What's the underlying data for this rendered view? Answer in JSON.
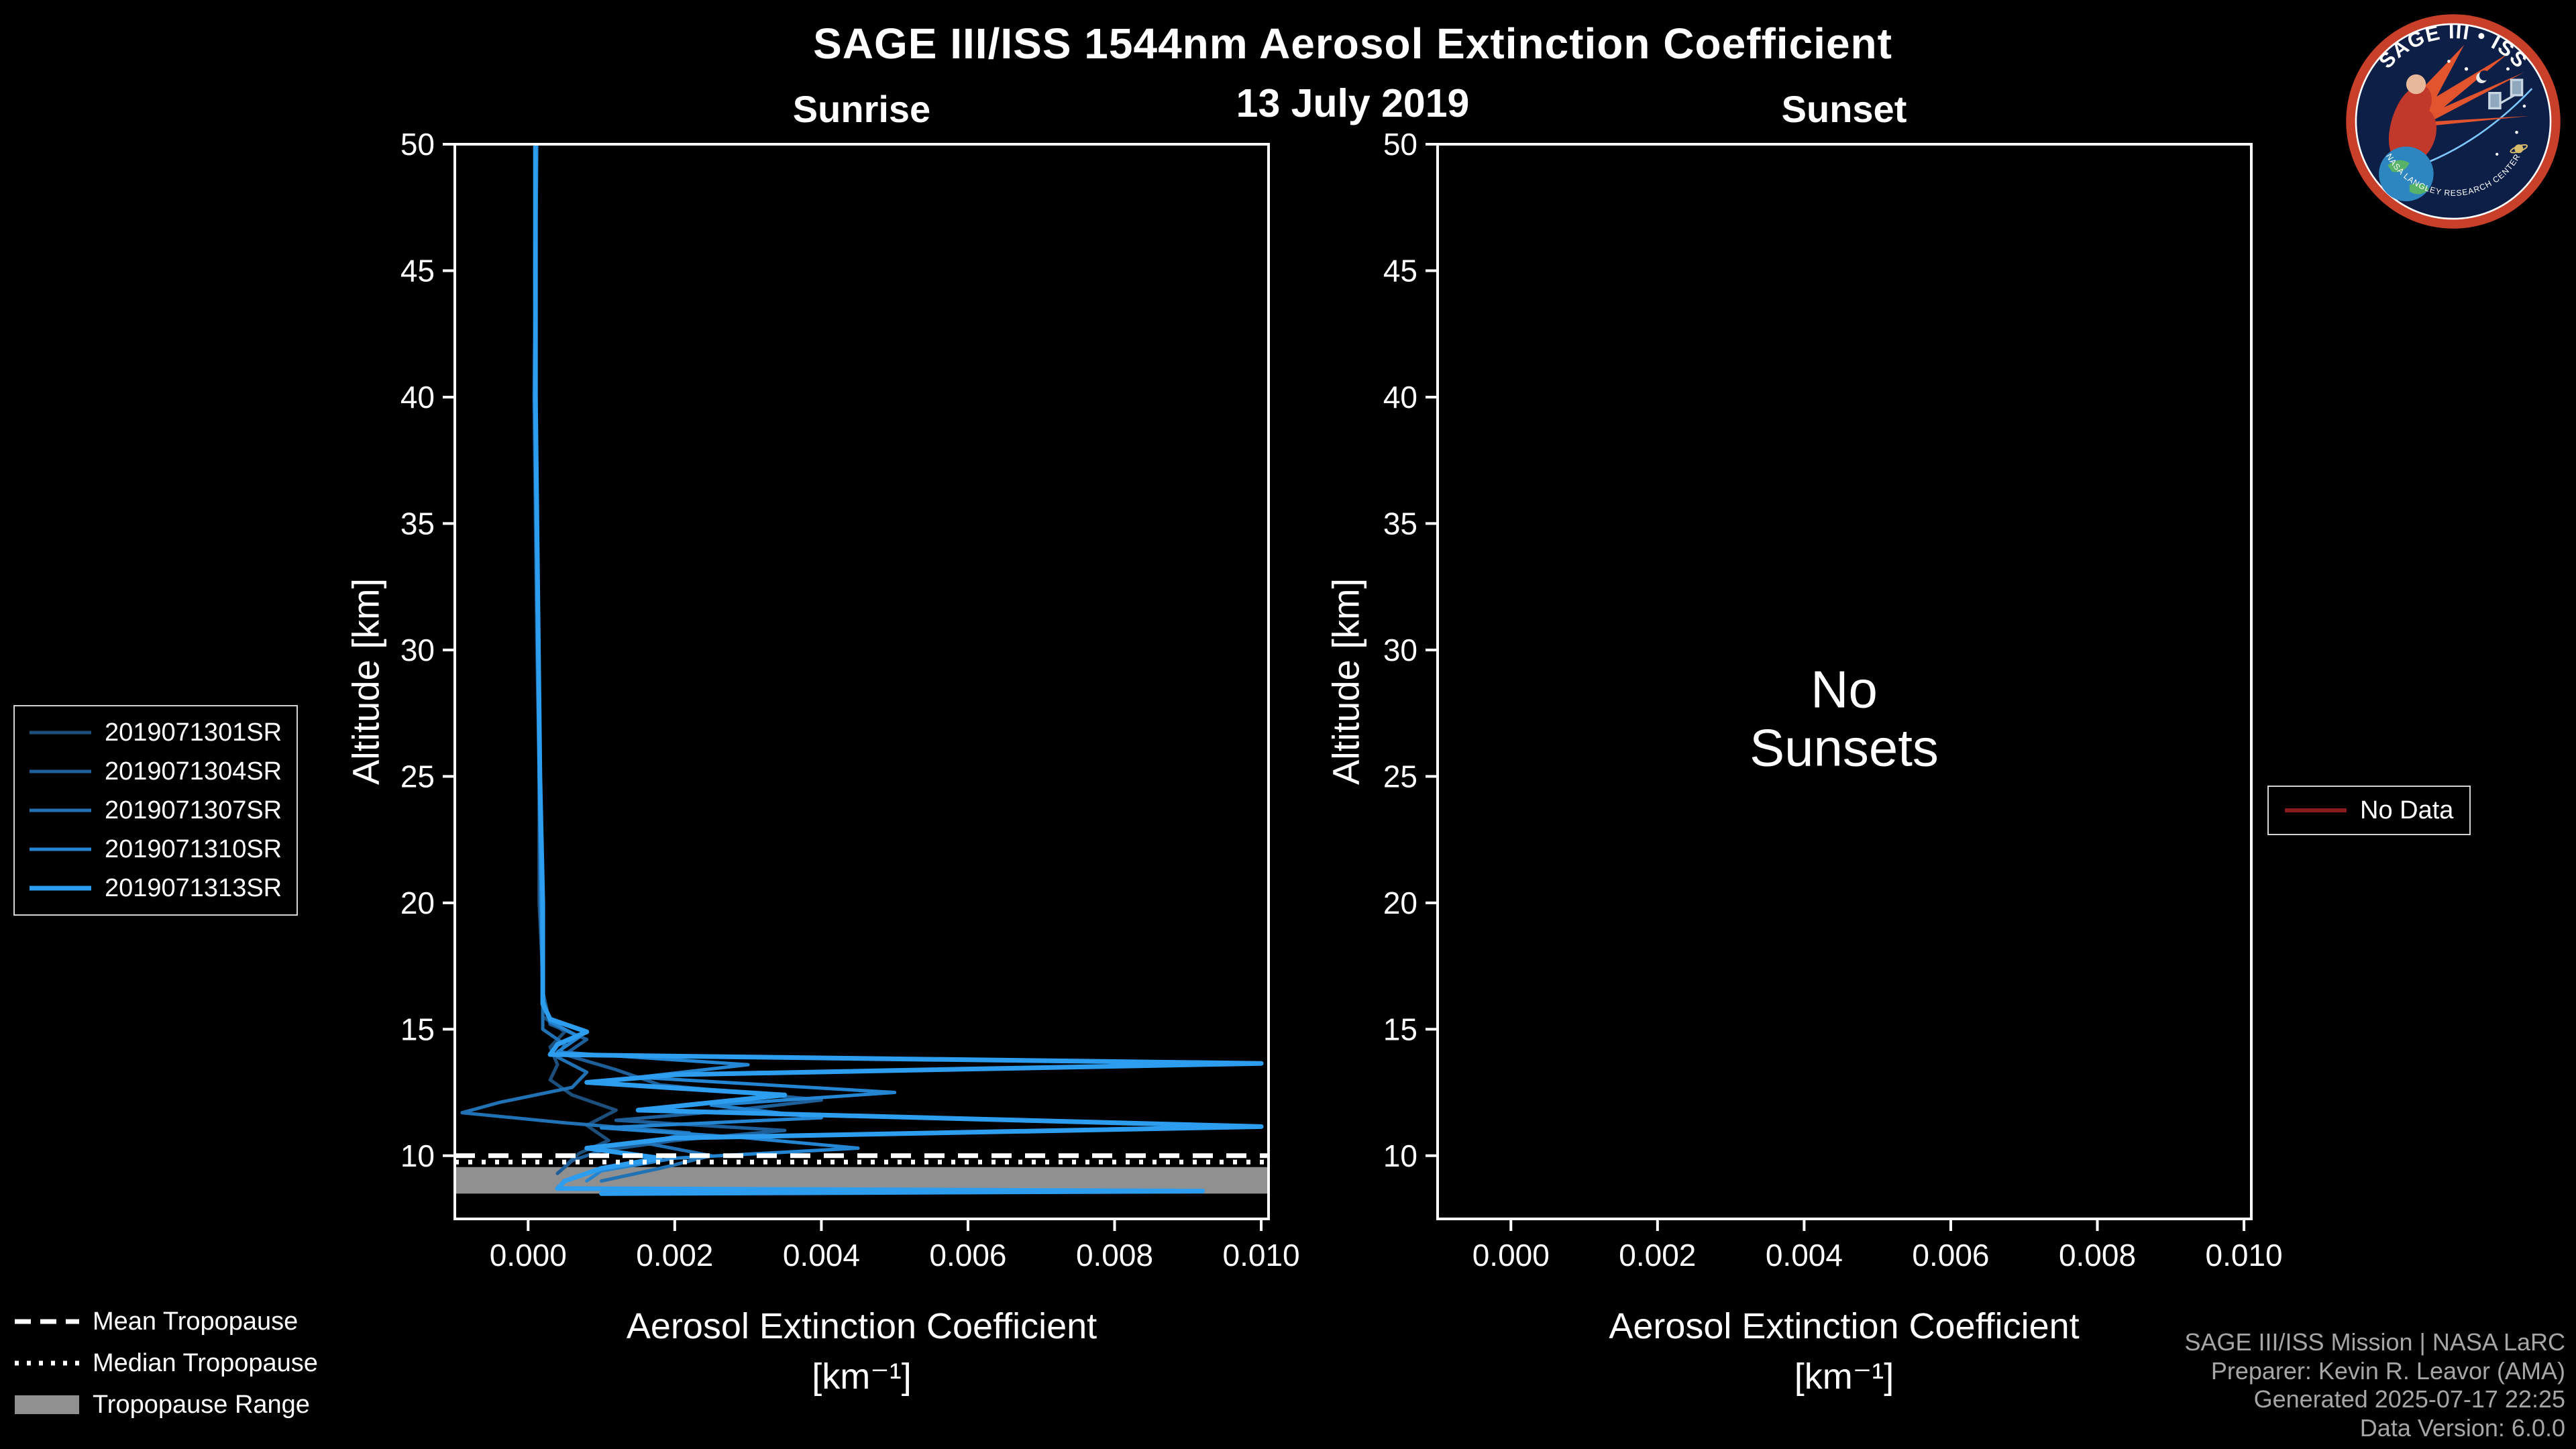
{
  "colors": {
    "background": "#000000",
    "foreground": "#ffffff",
    "tropopause_range": "#909090",
    "no_data": "#8b1a1a",
    "credits_text": "#a6a6a6"
  },
  "header": {
    "title": "SAGE III/ISS 1544nm Aerosol Extinction Coefficient",
    "date": "13 July 2019"
  },
  "logo": {
    "title": "SAGE III • ISS",
    "ring_text": "NASA LANGLEY RESEARCH CENTER"
  },
  "axes": {
    "x_label": "Aerosol Extinction Coefficient",
    "x_label_units": "[km⁻¹]",
    "y_label": "Altitude [km]"
  },
  "legend": {
    "tropopause": [
      {
        "label": "Mean Tropopause",
        "style": "dashed"
      },
      {
        "label": "Median Tropopause",
        "style": "dotted"
      },
      {
        "label": "Tropopause Range",
        "style": "patch"
      }
    ],
    "no_data": {
      "label": "No Data",
      "color": "#8b1a1a"
    }
  },
  "credits": {
    "lines": [
      "SAGE III/ISS Mission | NASA LaRC",
      "Preparer: Kevin R. Leavor (AMA)",
      "Generated 2025-07-17 22:25",
      "Data Version: 6.0.0"
    ]
  },
  "chart_data": {
    "type": "line",
    "title": "SAGE III/ISS 1544nm Aerosol Extinction Coefficient",
    "subtitle": "13 July 2019",
    "xlabel": "Aerosol Extinction Coefficient [km⁻¹]",
    "ylabel": "Altitude [km]",
    "xlim": [
      -0.001,
      0.0101
    ],
    "ylim": [
      7.5,
      50
    ],
    "x_ticks": [
      0.0,
      0.002,
      0.004,
      0.006,
      0.008,
      0.01
    ],
    "x_tick_labels": [
      "0.000",
      "0.002",
      "0.004",
      "0.006",
      "0.008",
      "0.010"
    ],
    "y_ticks": [
      10,
      15,
      20,
      25,
      30,
      35,
      40,
      45,
      50
    ],
    "grid": false,
    "legend_position": "left",
    "points_format": "[extinction_km^-1, altitude_km]",
    "panels": [
      {
        "name": "Sunrise",
        "tropopause": {
          "mean_km": 10.0,
          "median_km": 9.75,
          "range_km": [
            8.5,
            9.55
          ]
        },
        "series": [
          {
            "name": "2019071301SR",
            "color": "#1c4f7c",
            "width": 5,
            "points": [
              [
                0.0001,
                50
              ],
              [
                0.0001,
                45
              ],
              [
                8e-05,
                40
              ],
              [
                0.0001,
                35
              ],
              [
                0.00012,
                30
              ],
              [
                0.00015,
                25
              ],
              [
                0.00015,
                20
              ],
              [
                0.0002,
                17
              ],
              [
                0.0002,
                15.5
              ],
              [
                0.0005,
                14.9
              ],
              [
                0.0003,
                14.3
              ],
              [
                0.0004,
                13.6
              ],
              [
                0.0003,
                13.0
              ],
              [
                0.0006,
                12.4
              ],
              [
                0.0012,
                11.8
              ],
              [
                0.0008,
                11.2
              ],
              [
                0.0011,
                10.6
              ],
              [
                0.0007,
                10.1
              ],
              [
                0.0005,
                9.6
              ]
            ]
          },
          {
            "name": "2019071304SR",
            "color": "#1e5f99",
            "width": 5,
            "points": [
              [
                0.00012,
                50
              ],
              [
                0.0001,
                45
              ],
              [
                0.0001,
                40
              ],
              [
                0.00012,
                35
              ],
              [
                0.00014,
                30
              ],
              [
                0.00016,
                25
              ],
              [
                0.00018,
                20
              ],
              [
                0.0002,
                16.5
              ],
              [
                0.0003,
                15.2
              ],
              [
                0.0008,
                14.6
              ],
              [
                0.0005,
                14.0
              ],
              [
                0.0012,
                13.4
              ],
              [
                0.0018,
                12.8
              ],
              [
                0.004,
                12.2
              ],
              [
                0.0028,
                11.8
              ],
              [
                0.0012,
                11.4
              ],
              [
                0.0035,
                11.0
              ],
              [
                0.002,
                10.6
              ],
              [
                0.001,
                10.2
              ],
              [
                0.0006,
                9.8
              ],
              [
                0.0004,
                9.3
              ]
            ]
          },
          {
            "name": "2019071307SR",
            "color": "#2172b5",
            "width": 5,
            "points": [
              [
                0.0001,
                50
              ],
              [
                9e-05,
                45
              ],
              [
                0.0001,
                40
              ],
              [
                0.00011,
                35
              ],
              [
                0.00013,
                30
              ],
              [
                0.00015,
                25
              ],
              [
                0.00017,
                20
              ],
              [
                0.0002,
                16.0
              ],
              [
                0.0002,
                15.0
              ],
              [
                0.0005,
                14.4
              ],
              [
                0.0004,
                13.9
              ],
              [
                0.0008,
                13.3
              ],
              [
                0.0006,
                12.7
              ],
              [
                -0.0004,
                12.1
              ],
              [
                -0.0009,
                11.7
              ],
              [
                0.0005,
                11.3
              ],
              [
                0.0022,
                10.9
              ],
              [
                0.0016,
                10.5
              ],
              [
                0.0025,
                10.0
              ],
              [
                0.0018,
                9.5
              ],
              [
                0.001,
                9.0
              ]
            ]
          },
          {
            "name": "2019071310SR",
            "color": "#2486d3",
            "width": 5,
            "points": [
              [
                0.0001,
                50
              ],
              [
                0.0001,
                45
              ],
              [
                9e-05,
                40
              ],
              [
                0.00011,
                35
              ],
              [
                0.00013,
                30
              ],
              [
                0.00016,
                25
              ],
              [
                0.00018,
                20
              ],
              [
                0.0002,
                16.2
              ],
              [
                0.0003,
                15.3
              ],
              [
                0.0007,
                14.7
              ],
              [
                0.0004,
                14.1
              ],
              [
                0.003,
                13.6
              ],
              [
                0.0015,
                13.1
              ],
              [
                0.005,
                12.5
              ],
              [
                0.0025,
                12.0
              ],
              [
                0.004,
                11.5
              ],
              [
                0.001,
                11.1
              ],
              [
                0.003,
                10.7
              ],
              [
                0.0045,
                10.3
              ],
              [
                0.002,
                9.9
              ],
              [
                0.001,
                9.4
              ],
              [
                0.0008,
                9.0
              ]
            ]
          },
          {
            "name": "2019071313SR",
            "color": "#2d9df0",
            "width": 7,
            "points": [
              [
                0.0001,
                50
              ],
              [
                0.0001,
                45
              ],
              [
                0.0001,
                40
              ],
              [
                0.00012,
                35
              ],
              [
                0.00014,
                30
              ],
              [
                0.00016,
                25
              ],
              [
                0.0002,
                20
              ],
              [
                0.0002,
                16.0
              ],
              [
                0.0003,
                15.4
              ],
              [
                0.0008,
                14.9
              ],
              [
                0.0004,
                14.4
              ],
              [
                0.0003,
                14.0
              ],
              [
                0.01,
                13.65
              ],
              [
                0.002,
                13.2
              ],
              [
                0.0008,
                12.9
              ],
              [
                0.0035,
                12.4
              ],
              [
                0.0015,
                11.8
              ],
              [
                0.01,
                11.15
              ],
              [
                0.002,
                10.7
              ],
              [
                0.0008,
                10.3
              ],
              [
                0.0018,
                9.9
              ],
              [
                0.001,
                9.5
              ],
              [
                0.0005,
                9.0
              ],
              [
                0.0004,
                8.7
              ],
              [
                0.0092,
                8.6
              ],
              [
                0.001,
                8.5
              ]
            ]
          }
        ]
      },
      {
        "name": "Sunset",
        "annotation": "No\nSunsets",
        "series": []
      }
    ]
  }
}
